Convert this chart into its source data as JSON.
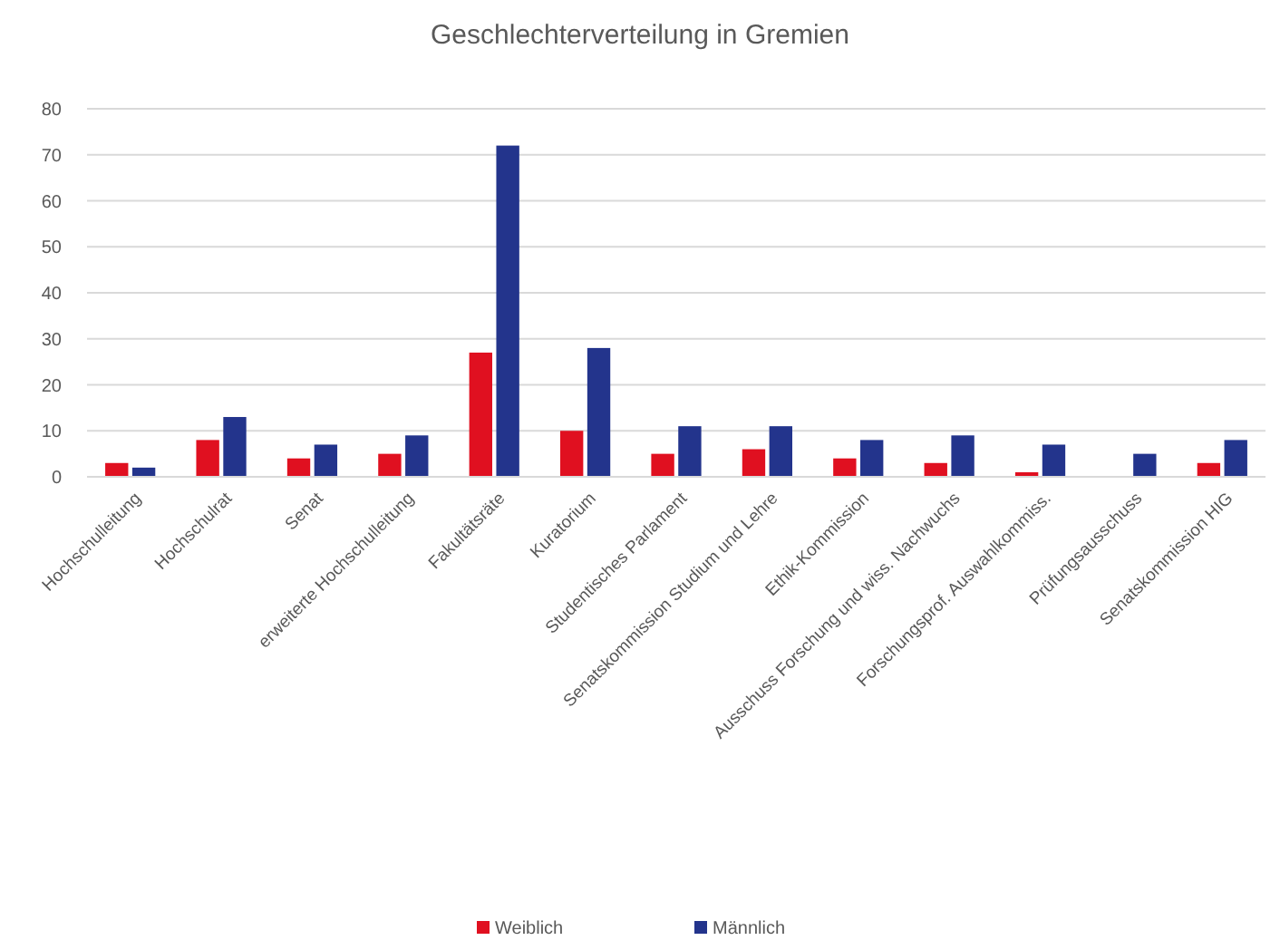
{
  "chart_data": {
    "type": "bar",
    "title": "Geschlechterverteilung in Gremien",
    "categories": [
      "Hochschulleitung",
      "Hochschulrat",
      "Senat",
      "erweiterte Hochschulleitung",
      "Fakultätsräte",
      "Kuratorium",
      "Studentisches Parlament",
      "Senatskommission Studium und Lehre",
      "Ethik-Kommission",
      "Ausschuss Forschung und wiss. Nachwuchs",
      "Forschungsprof. Auswahlkommiss.",
      "Prüfungsausschuss",
      "Senatskommission HIG"
    ],
    "series": [
      {
        "name": "Weiblich",
        "color": "#e01020",
        "values": [
          3,
          8,
          4,
          5,
          27,
          10,
          5,
          6,
          4,
          3,
          1,
          0,
          3
        ]
      },
      {
        "name": "Männlich",
        "color": "#23348c",
        "values": [
          2,
          13,
          7,
          9,
          72,
          28,
          11,
          11,
          8,
          9,
          7,
          5,
          8
        ]
      }
    ],
    "ylim": [
      0,
      80
    ],
    "yticks": [
      0,
      10,
      20,
      30,
      40,
      50,
      60,
      70,
      80
    ],
    "grid": "y",
    "legend": "bottom"
  }
}
